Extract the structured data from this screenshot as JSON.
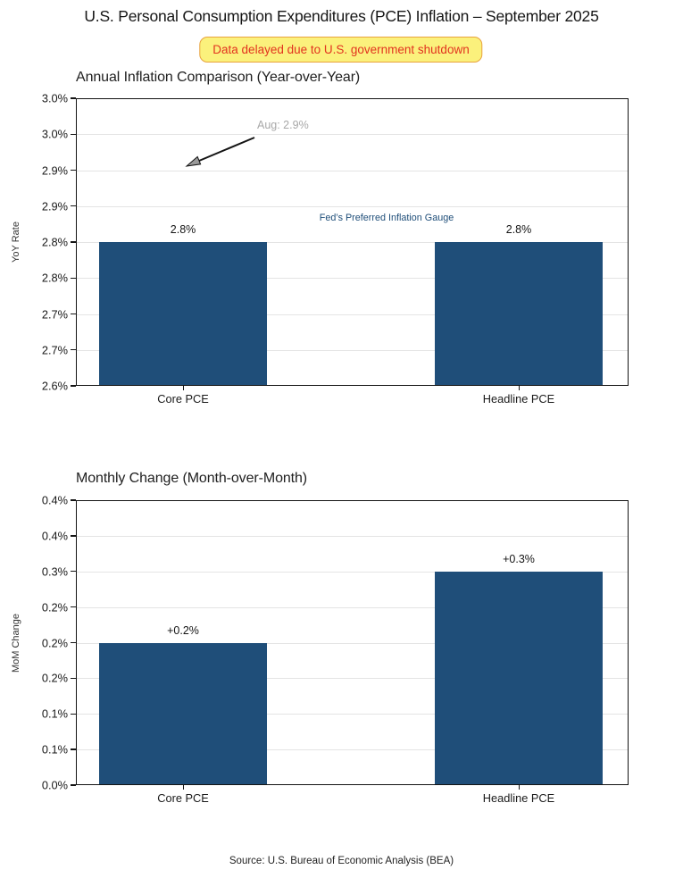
{
  "page": {
    "title": "U.S. Personal Consumption Expenditures (PCE) Inflation – September 2025",
    "banner_text": "Data delayed due to U.S. government shutdown",
    "source": "Source: U.S. Bureau of Economic Analysis (BEA)"
  },
  "colors": {
    "bar": "#1F4E79",
    "banner_bg": "#FBF17C",
    "banner_border": "#E8A33D",
    "banner_text": "#E2331F",
    "annotation_gray": "#A8A8A8",
    "annotation_navy": "#1F4E79",
    "grid": "#E4E4E4"
  },
  "chart_data": [
    {
      "type": "bar",
      "title": "Annual Inflation Comparison (Year-over-Year)",
      "ylabel": "YoY Rate",
      "categories": [
        "Core PCE",
        "Headline PCE"
      ],
      "values": [
        2.8,
        2.8
      ],
      "data_labels": [
        "2.8%",
        "2.8%"
      ],
      "ylim": [
        2.6,
        3.0
      ],
      "ytick_labels_top_to_bottom": [
        "3.0%",
        "3.0%",
        "2.9%",
        "2.9%",
        "2.8%",
        "2.8%",
        "2.7%",
        "2.7%",
        "2.6%"
      ],
      "grid": true,
      "legend_position": "none",
      "annotations": [
        {
          "text": "Aug: 2.9%",
          "points_to_value": 2.9
        },
        {
          "text": "Fed’s Preferred Inflation Gauge"
        }
      ]
    },
    {
      "type": "bar",
      "title": "Monthly Change (Month-over-Month)",
      "ylabel": "MoM Change",
      "categories": [
        "Core PCE",
        "Headline PCE"
      ],
      "values": [
        0.2,
        0.3
      ],
      "data_labels": [
        "+0.2%",
        "+0.3%"
      ],
      "ylim": [
        0.0,
        0.4
      ],
      "ytick_labels_top_to_bottom": [
        "0.4%",
        "0.4%",
        "0.3%",
        "0.2%",
        "0.2%",
        "0.2%",
        "0.1%",
        "0.1%",
        "0.0%"
      ],
      "grid": true,
      "legend_position": "none",
      "annotations": []
    }
  ]
}
